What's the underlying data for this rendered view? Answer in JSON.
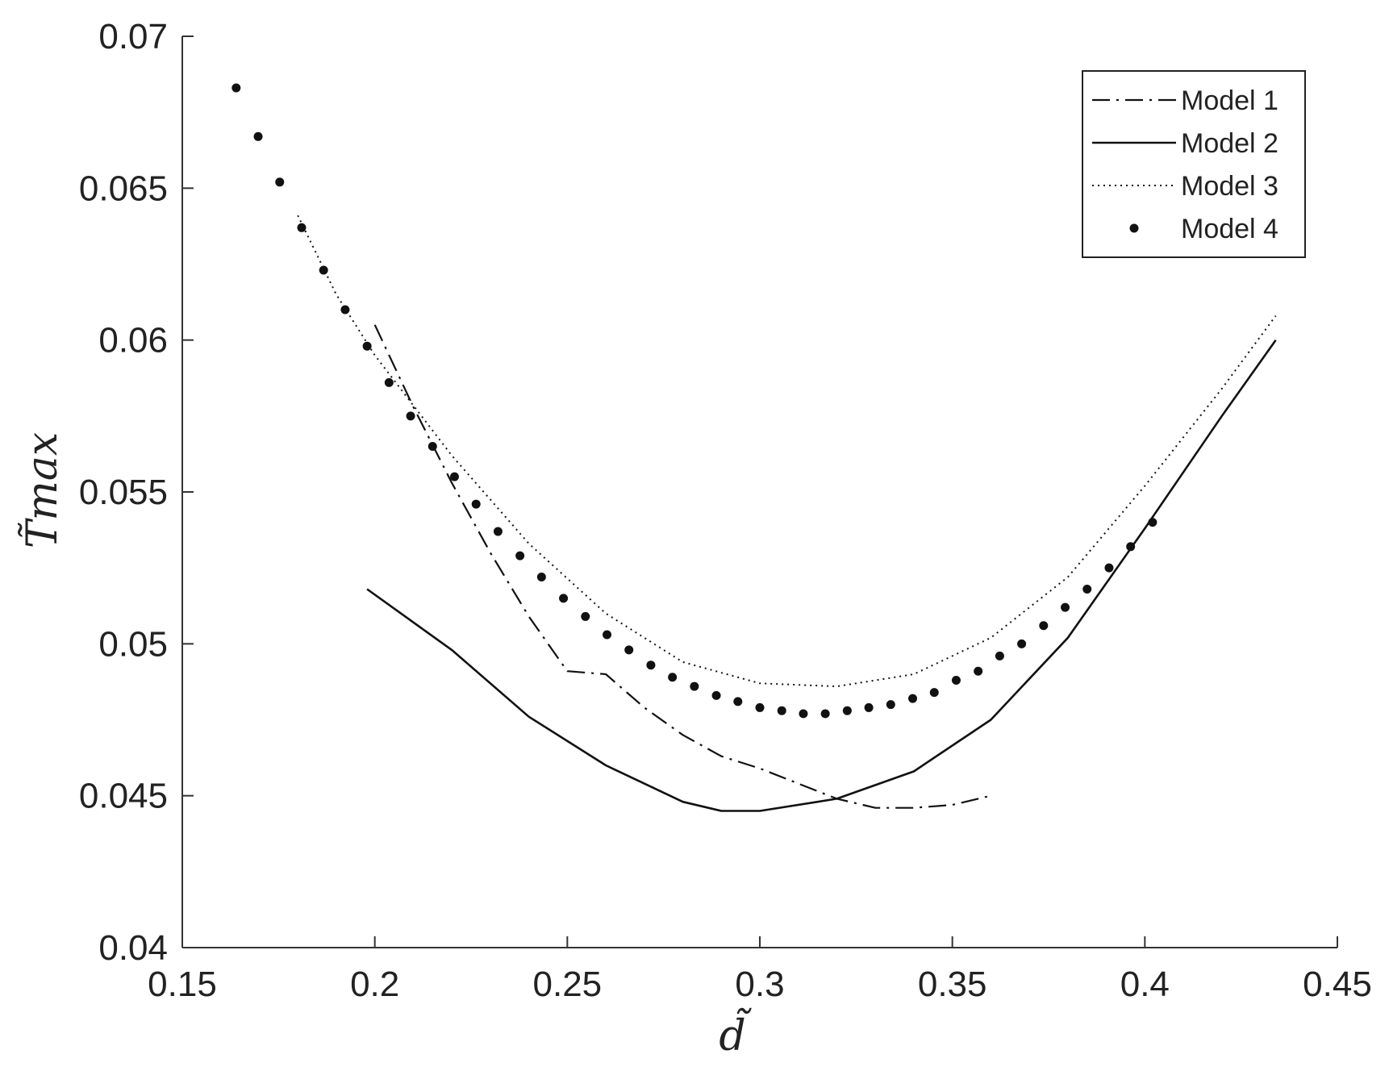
{
  "chart_data": {
    "type": "line",
    "xlabel": "d̃",
    "ylabel": "T̃max",
    "xlim": [
      0.15,
      0.45
    ],
    "ylim": [
      0.04,
      0.07
    ],
    "x_ticks": [
      "0.15",
      "0.2",
      "0.25",
      "0.3",
      "0.35",
      "0.4",
      "0.45"
    ],
    "y_ticks": [
      "0.04",
      "0.045",
      "0.05",
      "0.055",
      "0.06",
      "0.065",
      "0.07"
    ],
    "grid": false,
    "legend_position": "top-right",
    "series": [
      {
        "name": "Model 1",
        "style": "dashdot",
        "points": [
          [
            0.2,
            0.0605
          ],
          [
            0.21,
            0.0578
          ],
          [
            0.22,
            0.0553
          ],
          [
            0.23,
            0.053
          ],
          [
            0.24,
            0.0509
          ],
          [
            0.25,
            0.0491
          ],
          [
            0.26,
            0.049
          ],
          [
            0.27,
            0.0479
          ],
          [
            0.28,
            0.047
          ],
          [
            0.29,
            0.0463
          ],
          [
            0.3,
            0.0459
          ],
          [
            0.31,
            0.0454
          ],
          [
            0.32,
            0.0449
          ],
          [
            0.33,
            0.0446
          ],
          [
            0.34,
            0.0446
          ],
          [
            0.35,
            0.0447
          ],
          [
            0.36,
            0.045
          ]
        ]
      },
      {
        "name": "Model 2",
        "style": "solid",
        "points": [
          [
            0.198,
            0.0518
          ],
          [
            0.22,
            0.0498
          ],
          [
            0.24,
            0.0476
          ],
          [
            0.26,
            0.046
          ],
          [
            0.28,
            0.0448
          ],
          [
            0.29,
            0.0445
          ],
          [
            0.3,
            0.0445
          ],
          [
            0.32,
            0.0449
          ],
          [
            0.34,
            0.0458
          ],
          [
            0.36,
            0.0475
          ],
          [
            0.38,
            0.0502
          ],
          [
            0.4,
            0.0538
          ],
          [
            0.42,
            0.0575
          ],
          [
            0.434,
            0.06
          ]
        ]
      },
      {
        "name": "Model 3",
        "style": "dotted",
        "points": [
          [
            0.18,
            0.0641
          ],
          [
            0.19,
            0.0615
          ],
          [
            0.2,
            0.0595
          ],
          [
            0.22,
            0.0562
          ],
          [
            0.24,
            0.0533
          ],
          [
            0.26,
            0.051
          ],
          [
            0.28,
            0.0494
          ],
          [
            0.3,
            0.0487
          ],
          [
            0.32,
            0.0486
          ],
          [
            0.34,
            0.049
          ],
          [
            0.36,
            0.0502
          ],
          [
            0.38,
            0.0522
          ],
          [
            0.4,
            0.0552
          ],
          [
            0.42,
            0.0584
          ],
          [
            0.434,
            0.0608
          ]
        ]
      },
      {
        "name": "Model 4",
        "style": "markers",
        "points": [
          [
            0.164,
            0.0683
          ],
          [
            0.1697,
            0.0667
          ],
          [
            0.1753,
            0.0652
          ],
          [
            0.181,
            0.0637
          ],
          [
            0.1867,
            0.0623
          ],
          [
            0.1923,
            0.061
          ],
          [
            0.198,
            0.0598
          ],
          [
            0.2037,
            0.0586
          ],
          [
            0.2093,
            0.0575
          ],
          [
            0.215,
            0.0565
          ],
          [
            0.2207,
            0.0555
          ],
          [
            0.2263,
            0.0546
          ],
          [
            0.232,
            0.0537
          ],
          [
            0.2377,
            0.0529
          ],
          [
            0.2433,
            0.0522
          ],
          [
            0.249,
            0.0515
          ],
          [
            0.2547,
            0.0509
          ],
          [
            0.2603,
            0.0503
          ],
          [
            0.266,
            0.0498
          ],
          [
            0.2717,
            0.0493
          ],
          [
            0.2773,
            0.0489
          ],
          [
            0.283,
            0.0486
          ],
          [
            0.2887,
            0.0483
          ],
          [
            0.2943,
            0.0481
          ],
          [
            0.3,
            0.0479
          ],
          [
            0.3057,
            0.0478
          ],
          [
            0.3113,
            0.0477
          ],
          [
            0.317,
            0.0477
          ],
          [
            0.3227,
            0.0478
          ],
          [
            0.3283,
            0.0479
          ],
          [
            0.334,
            0.048
          ],
          [
            0.3397,
            0.0482
          ],
          [
            0.3453,
            0.0484
          ],
          [
            0.351,
            0.0488
          ],
          [
            0.3567,
            0.0491
          ],
          [
            0.3623,
            0.0496
          ],
          [
            0.368,
            0.05
          ],
          [
            0.3737,
            0.0506
          ],
          [
            0.3793,
            0.0512
          ],
          [
            0.385,
            0.0518
          ],
          [
            0.3907,
            0.0525
          ],
          [
            0.3963,
            0.0532
          ],
          [
            0.402,
            0.054
          ]
        ]
      }
    ]
  }
}
